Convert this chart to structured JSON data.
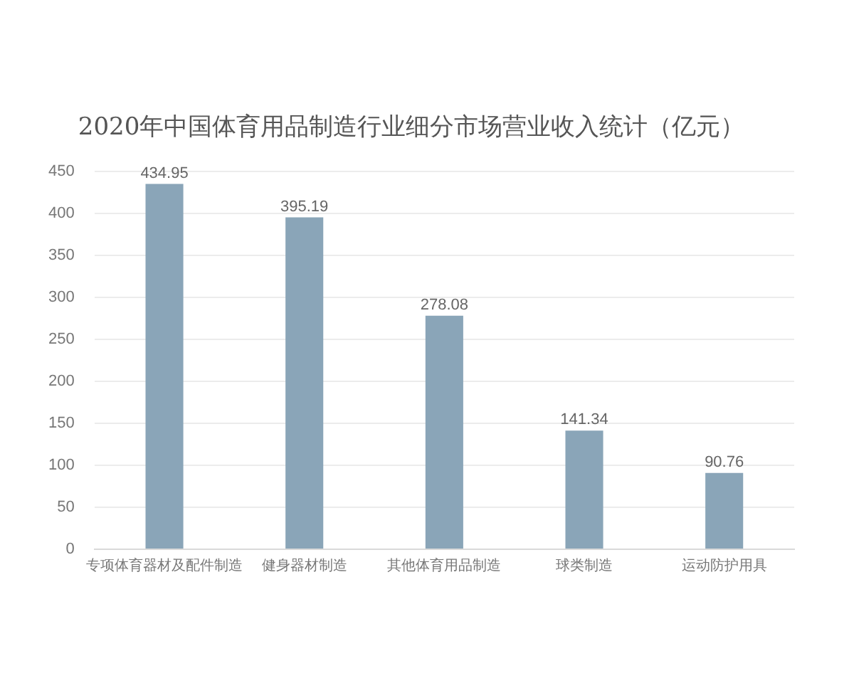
{
  "chart_data": {
    "type": "bar",
    "title": "2020年中国体育用品制造行业细分市场营业收入统计（亿元）",
    "categories": [
      "专项体育器材及配件制造",
      "健身器材制造",
      "其他体育用品制造",
      "球类制造",
      "运动防护用具"
    ],
    "values": [
      434.95,
      395.19,
      278.08,
      141.34,
      90.76
    ],
    "color": "#8aa5b8",
    "ylim": [
      0,
      450
    ],
    "yticks": [
      0,
      50,
      100,
      150,
      200,
      250,
      300,
      350,
      400,
      450
    ],
    "grid": "y",
    "legend": false,
    "data_labels": true
  }
}
